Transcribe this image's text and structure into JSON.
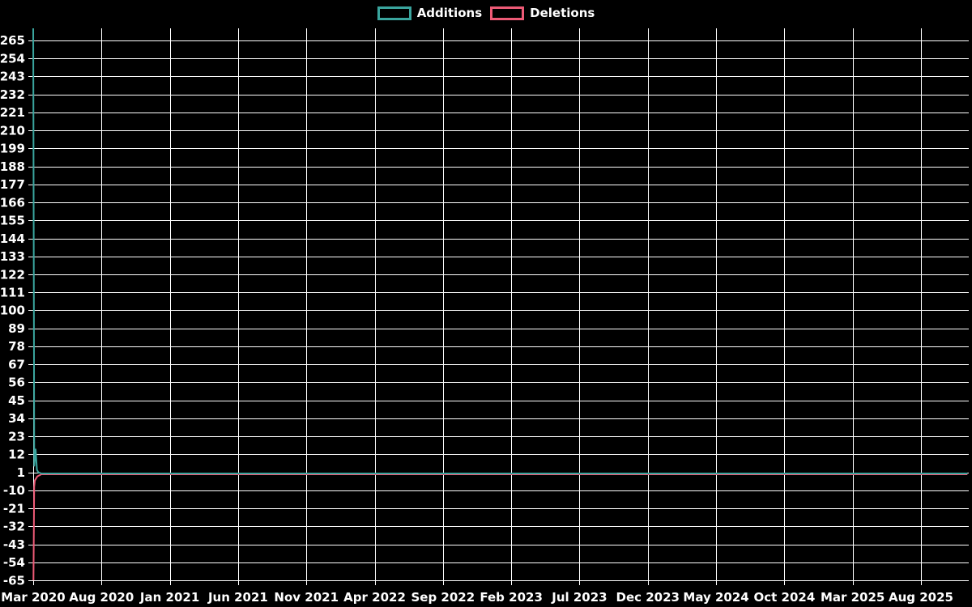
{
  "chart_data": {
    "type": "line",
    "title": "",
    "background_color": "#000000",
    "grid_color": "#ffffff",
    "text_color": "#ffffff",
    "grid": true,
    "legend_position": "top-center",
    "x_tick_labels": [
      "Mar 2020",
      "Aug 2020",
      "Jan 2021",
      "Jun 2021",
      "Nov 2021",
      "Apr 2022",
      "Sep 2022",
      "Feb 2023",
      "Jul 2023",
      "Dec 2023",
      "May 2024",
      "Oct 2024",
      "Mar 2025",
      "Aug 2025"
    ],
    "x_tick_interval_months": 5,
    "x_domain_months": [
      0,
      68.5
    ],
    "y_ticks": [
      265,
      254,
      243,
      232,
      221,
      210,
      199,
      188,
      177,
      166,
      155,
      144,
      133,
      122,
      111,
      100,
      89,
      78,
      67,
      56,
      45,
      34,
      23,
      12,
      1,
      -10,
      -21,
      -32,
      -43,
      -54,
      -65
    ],
    "y_domain": [
      -65,
      272.4
    ],
    "series": [
      {
        "name": "Additions",
        "color": "#3aa59e",
        "points": [
          [
            0,
            272.4
          ],
          [
            0.08,
            5
          ],
          [
            0.18,
            15
          ],
          [
            0.27,
            2.5
          ],
          [
            0.38,
            1
          ],
          [
            0.6,
            0.3
          ],
          [
            68.4,
            0.3
          ]
        ]
      },
      {
        "name": "Deletions",
        "color": "#ed5a76",
        "points": [
          [
            0.02,
            -65
          ],
          [
            0.07,
            -8
          ],
          [
            0.12,
            -4
          ],
          [
            0.3,
            -1.5
          ],
          [
            0.6,
            -0.2
          ],
          [
            68.4,
            -0.2
          ]
        ]
      }
    ]
  }
}
